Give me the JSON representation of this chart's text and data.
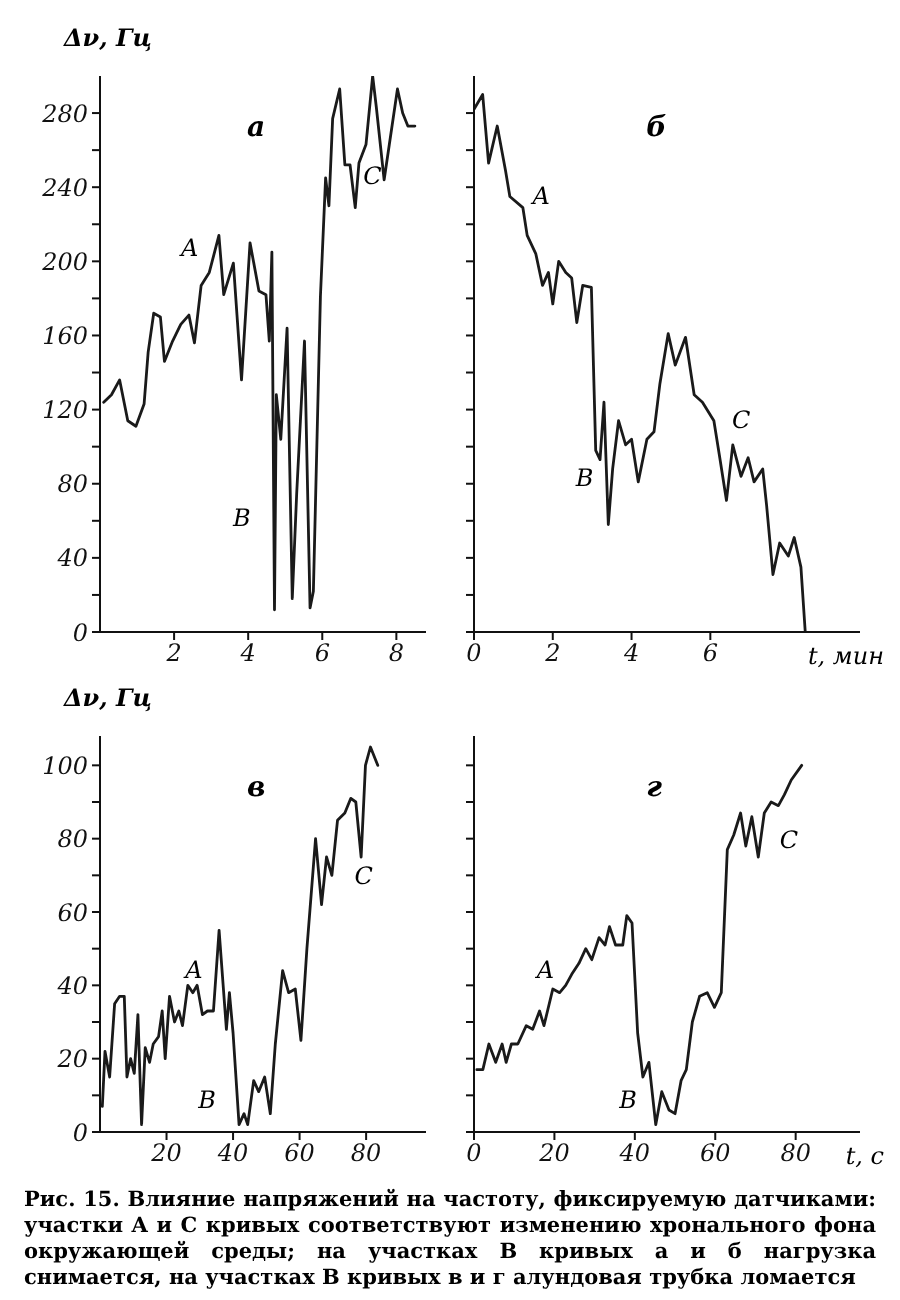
{
  "chart_data": [
    {
      "type": "line",
      "title": "а",
      "ylabel": "Δν, Гц",
      "marker": "none",
      "xlim": [
        0,
        8.8
      ],
      "xticks": [
        2,
        4,
        6,
        8
      ],
      "ylim": [
        0,
        300
      ],
      "yticks": [
        0,
        {
          "value": 20,
          "label": null
        },
        40,
        {
          "value": 60,
          "label": null
        },
        80,
        {
          "value": 100,
          "label": null
        },
        120,
        {
          "value": 140,
          "label": null
        },
        160,
        {
          "value": 180,
          "label": null
        },
        200,
        {
          "value": 220,
          "label": null
        },
        240,
        {
          "value": 260,
          "label": null
        },
        280
      ],
      "x": [
        0.1,
        0.31,
        0.53,
        0.75,
        0.97,
        1.19,
        1.3,
        1.45,
        1.63,
        1.74,
        1.96,
        2.18,
        2.4,
        2.55,
        2.73,
        2.95,
        3.21,
        3.34,
        3.6,
        3.82,
        4.05,
        4.29,
        4.48,
        4.57,
        4.64,
        4.71,
        4.76,
        4.88,
        5.05,
        5.19,
        5.31,
        5.52,
        5.67,
        5.76,
        5.95,
        6.09,
        6.18,
        6.28,
        6.47,
        6.61,
        6.75,
        6.89,
        6.99,
        7.18,
        7.36,
        7.46,
        7.67,
        7.81,
        8.03,
        8.17,
        8.31,
        8.5
      ],
      "series": [
        {
          "color": "#1a1a1a",
          "values": [
            124,
            128,
            136,
            114,
            111,
            123,
            151,
            172,
            170,
            146,
            157,
            166,
            171,
            156,
            187,
            194,
            214,
            182,
            199,
            136,
            210,
            184,
            182,
            157,
            205,
            12,
            128,
            104,
            164,
            18,
            75,
            157,
            13,
            22,
            181,
            245,
            230,
            277,
            293,
            252,
            252,
            229,
            253,
            263,
            300,
            283,
            244,
            263,
            293,
            280,
            273,
            273
          ]
        }
      ],
      "annotations": [
        "A",
        "B",
        "C"
      ]
    },
    {
      "type": "line",
      "title": "б",
      "xlabel": "t, мин",
      "marker": "none",
      "tick_labels": "x",
      "xlim": [
        0,
        9.8
      ],
      "xticks": [
        0,
        2,
        4,
        6
      ],
      "ylim": [
        0,
        300
      ],
      "yticks": [
        0,
        20,
        40,
        60,
        80,
        100,
        120,
        140,
        160,
        180,
        200,
        220,
        240,
        260,
        280
      ],
      "x": [
        0,
        0.22,
        0.37,
        0.59,
        0.8,
        0.91,
        1.24,
        1.35,
        1.57,
        1.74,
        1.89,
        2.0,
        2.15,
        2.33,
        2.48,
        2.61,
        2.76,
        2.98,
        3.09,
        3.2,
        3.3,
        3.41,
        3.52,
        3.67,
        3.85,
        4.0,
        4.17,
        4.39,
        4.57,
        4.72,
        4.93,
        5.11,
        5.37,
        5.59,
        5.8,
        6.09,
        6.24,
        6.41,
        6.57,
        6.78,
        6.96,
        7.11,
        7.33,
        7.43,
        7.59,
        7.76,
        7.98,
        8.13,
        8.3,
        8.41
      ],
      "series": [
        {
          "color": "#1a1a1a",
          "values": [
            282,
            290,
            253,
            273,
            249,
            235,
            229,
            214,
            204,
            187,
            194,
            177,
            200,
            194,
            191,
            167,
            187,
            186,
            98,
            93,
            124,
            58,
            88,
            114,
            101,
            104,
            81,
            104,
            108,
            134,
            161,
            144,
            159,
            128,
            124,
            114,
            94,
            71,
            101,
            84,
            94,
            81,
            88,
            68,
            31,
            48,
            41,
            51,
            35,
            0
          ]
        }
      ],
      "annotations": [
        "A",
        "B",
        "C"
      ]
    },
    {
      "type": "line",
      "title": "в",
      "ylabel": "Δν, Гц",
      "marker": "none",
      "xlim": [
        0,
        98
      ],
      "xticks": [
        20,
        40,
        60,
        80
      ],
      "ylim": [
        0,
        108
      ],
      "yticks": [
        0,
        {
          "value": 10,
          "label": null
        },
        20,
        {
          "value": 30,
          "label": null
        },
        40,
        {
          "value": 50,
          "label": null
        },
        60,
        {
          "value": 70,
          "label": null
        },
        80,
        {
          "value": 90,
          "label": null
        },
        100
      ],
      "x": [
        0.7,
        1.5,
        2.9,
        4.4,
        5.9,
        7.3,
        8.1,
        9.2,
        10.3,
        11.4,
        12.5,
        13.6,
        14.9,
        16,
        17.6,
        18.7,
        19.6,
        20.9,
        22.4,
        23.7,
        24.8,
        26.4,
        27.9,
        29.2,
        30.8,
        32.3,
        34.1,
        35.8,
        38,
        38.9,
        40,
        41.8,
        43.3,
        44.4,
        46.2,
        47.7,
        49.5,
        51.2,
        52.7,
        54.9,
        56.7,
        58.7,
        60.4,
        62.2,
        64.8,
        66.6,
        68.1,
        69.7,
        71.4,
        73.6,
        75.4,
        76.9,
        78.5,
        79.8,
        81.3,
        83.5
      ],
      "series": [
        {
          "color": "#1a1a1a",
          "values": [
            7,
            22,
            15,
            35,
            37,
            37,
            15,
            20,
            16,
            32,
            2,
            23,
            19,
            24,
            26,
            33,
            20,
            37,
            30,
            33,
            29,
            40,
            38,
            40,
            32,
            33,
            33,
            55,
            28,
            38,
            27,
            2,
            5,
            2,
            14,
            11,
            15,
            5,
            24,
            44,
            38,
            39,
            25,
            50,
            80,
            62,
            75,
            70,
            85,
            87,
            91,
            90,
            75,
            100,
            105,
            100
          ]
        }
      ],
      "annotations": [
        "A",
        "B",
        "C"
      ]
    },
    {
      "type": "line",
      "title": "г",
      "xlabel": "t, с",
      "marker": "none",
      "tick_labels": "x",
      "xlim": [
        0,
        96
      ],
      "xticks": [
        0,
        20,
        40,
        60,
        80
      ],
      "ylim": [
        0,
        108
      ],
      "yticks": [
        0,
        10,
        20,
        30,
        40,
        50,
        60,
        70,
        80,
        90,
        100
      ],
      "x": [
        0.7,
        2.2,
        3.7,
        5.4,
        7,
        8,
        9.3,
        10.9,
        13,
        14.6,
        16.3,
        17.4,
        19.6,
        21.3,
        22.8,
        24.3,
        26.1,
        27.8,
        29.3,
        31.1,
        32.6,
        33.7,
        35.2,
        37,
        38,
        39.3,
        40.7,
        42,
        43.5,
        45.2,
        46.7,
        48.5,
        50,
        51.5,
        52.8,
        54.3,
        56.1,
        58,
        59.8,
        61.5,
        63,
        64.6,
        66.3,
        67.6,
        69.1,
        70.7,
        72.2,
        73.9,
        75.7,
        77.2,
        78.9,
        81.5
      ],
      "series": [
        {
          "color": "#1a1a1a",
          "values": [
            17,
            17,
            24,
            19,
            24,
            19,
            24,
            24,
            29,
            28,
            33,
            29,
            39,
            38,
            40,
            43,
            46,
            50,
            47,
            53,
            51,
            56,
            51,
            51,
            59,
            57,
            27,
            15,
            19,
            2,
            11,
            6,
            5,
            14,
            17,
            30,
            37,
            38,
            34,
            38,
            77,
            81,
            87,
            78,
            86,
            75,
            87,
            90,
            89,
            92,
            96,
            100
          ]
        }
      ],
      "annotations": [
        "A",
        "B",
        "C",
        "Рис. 15. Влияние напряжений на частоту, фиксируемую датчиками: участки A и C кривых соответствуют изменению хронального фона окружающей среды; на участках B кривых а и б нагрузка снимается, на участках B кривых в и г алундовая трубка ломается"
      ]
    }
  ]
}
